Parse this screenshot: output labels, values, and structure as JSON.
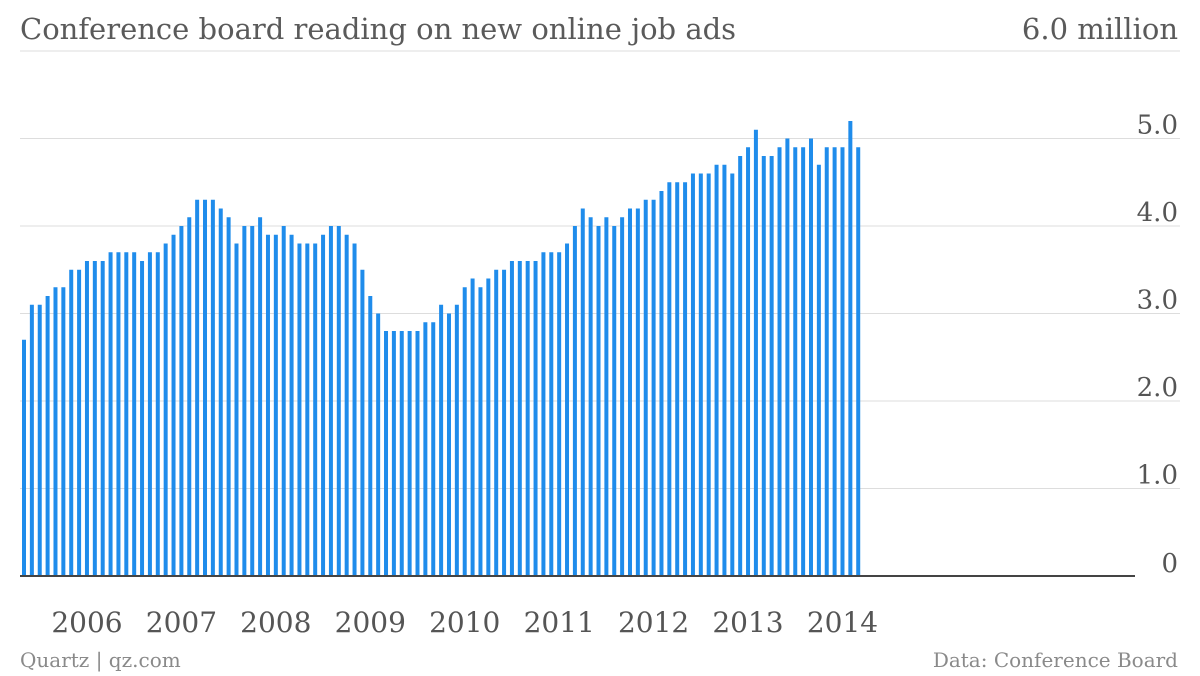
{
  "title": "Conference board reading on new online job ads",
  "unit_label": "6.0 million",
  "source_left": "Quartz | qz.com",
  "source_right": "Data: Conference Board",
  "colors": {
    "bar": "#1f8ceb",
    "grid": "#dddddd",
    "axis": "#444444",
    "text": "#555555"
  },
  "chart_data": {
    "type": "bar",
    "title": "Conference board reading on new online job ads",
    "unit": "million",
    "ylim": [
      0,
      6.0
    ],
    "y_ticks": [
      0,
      1.0,
      2.0,
      3.0,
      4.0,
      5.0
    ],
    "y_tick_labels": [
      "0",
      "1.0",
      "2.0",
      "3.0",
      "4.0",
      "5.0"
    ],
    "x_tick_labels": [
      "2006",
      "2007",
      "2008",
      "2009",
      "2010",
      "2011",
      "2012",
      "2013",
      "2014"
    ],
    "x_range": [
      "2005-05",
      "2014-03"
    ],
    "grid": true,
    "categories": [
      "2005-05",
      "2005-06",
      "2005-07",
      "2005-08",
      "2005-09",
      "2005-10",
      "2005-11",
      "2005-12",
      "2006-01",
      "2006-02",
      "2006-03",
      "2006-04",
      "2006-05",
      "2006-06",
      "2006-07",
      "2006-08",
      "2006-09",
      "2006-10",
      "2006-11",
      "2006-12",
      "2007-01",
      "2007-02",
      "2007-03",
      "2007-04",
      "2007-05",
      "2007-06",
      "2007-07",
      "2007-08",
      "2007-09",
      "2007-10",
      "2007-11",
      "2007-12",
      "2008-01",
      "2008-02",
      "2008-03",
      "2008-04",
      "2008-05",
      "2008-06",
      "2008-07",
      "2008-08",
      "2008-09",
      "2008-10",
      "2008-11",
      "2008-12",
      "2009-01",
      "2009-02",
      "2009-03",
      "2009-04",
      "2009-05",
      "2009-06",
      "2009-07",
      "2009-08",
      "2009-09",
      "2009-10",
      "2009-11",
      "2009-12",
      "2010-01",
      "2010-02",
      "2010-03",
      "2010-04",
      "2010-05",
      "2010-06",
      "2010-07",
      "2010-08",
      "2010-09",
      "2010-10",
      "2010-11",
      "2010-12",
      "2011-01",
      "2011-02",
      "2011-03",
      "2011-04",
      "2011-05",
      "2011-06",
      "2011-07",
      "2011-08",
      "2011-09",
      "2011-10",
      "2011-11",
      "2011-12",
      "2012-01",
      "2012-02",
      "2012-03",
      "2012-04",
      "2012-05",
      "2012-06",
      "2012-07",
      "2012-08",
      "2012-09",
      "2012-10",
      "2012-11",
      "2012-12",
      "2013-01",
      "2013-02",
      "2013-03",
      "2013-04",
      "2013-05",
      "2013-06",
      "2013-07",
      "2013-08",
      "2013-09",
      "2013-10",
      "2013-11",
      "2013-12",
      "2014-01",
      "2014-02",
      "2014-03"
    ],
    "values": [
      2.7,
      3.1,
      3.1,
      3.2,
      3.3,
      3.3,
      3.5,
      3.5,
      3.6,
      3.6,
      3.6,
      3.7,
      3.7,
      3.7,
      3.7,
      3.6,
      3.7,
      3.7,
      3.8,
      3.9,
      4.0,
      4.1,
      4.3,
      4.3,
      4.3,
      4.2,
      4.1,
      3.8,
      4.0,
      4.0,
      4.1,
      3.9,
      3.9,
      4.0,
      3.9,
      3.8,
      3.8,
      3.8,
      3.9,
      4.0,
      4.0,
      3.9,
      3.8,
      3.5,
      3.2,
      3.0,
      2.8,
      2.8,
      2.8,
      2.8,
      2.8,
      2.9,
      2.9,
      3.1,
      3.0,
      3.1,
      3.3,
      3.4,
      3.3,
      3.4,
      3.5,
      3.5,
      3.6,
      3.6,
      3.6,
      3.6,
      3.7,
      3.7,
      3.7,
      3.8,
      4.0,
      4.2,
      4.1,
      4.0,
      4.1,
      4.0,
      4.1,
      4.2,
      4.2,
      4.3,
      4.3,
      4.4,
      4.5,
      4.5,
      4.5,
      4.6,
      4.6,
      4.6,
      4.7,
      4.7,
      4.6,
      4.8,
      4.9,
      5.1,
      4.8,
      4.8,
      4.9,
      5.0,
      4.9,
      4.9,
      5.0,
      4.7,
      4.9,
      4.9,
      4.9,
      5.2,
      4.9
    ]
  }
}
